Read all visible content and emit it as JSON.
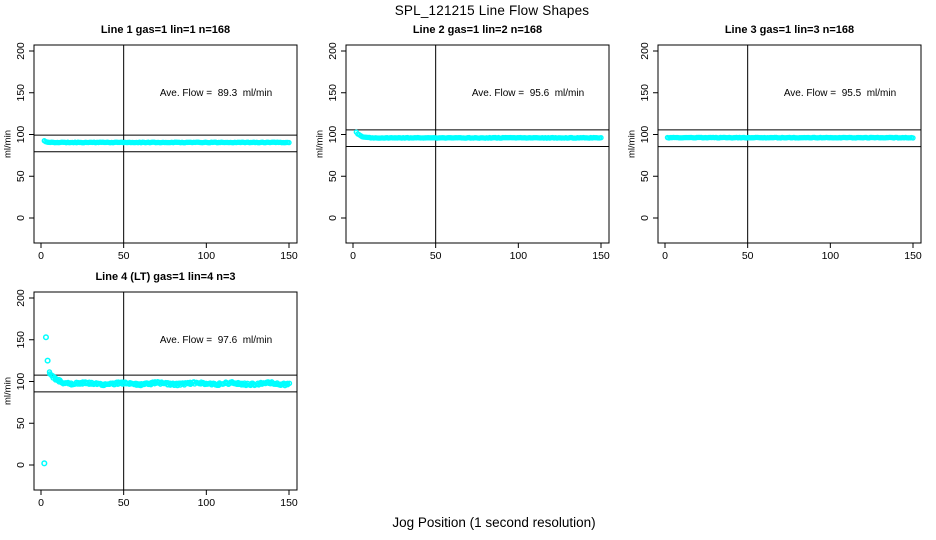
{
  "figure": {
    "title": "SPL_121215  Line Flow Shapes",
    "xlabel": "Jog Position (1 second resolution)"
  },
  "colors": {
    "points": "#00FFFF",
    "axis": "#000000",
    "background": "#FFFFFF",
    "text": "#000000"
  },
  "axes": {
    "ylabel": "ml/min",
    "x_ticks": [
      0,
      50,
      100,
      150
    ],
    "y_ticks": [
      0,
      50,
      100,
      150,
      200
    ],
    "xlim": [
      -4,
      155
    ],
    "ylim": [
      -30,
      207
    ]
  },
  "chart_data": [
    {
      "type": "scatter",
      "title": "Line 1 gas=1 lin=1 n=168",
      "annotation": "Ave. Flow =  89.3  ml/min",
      "ave_flow_ml_min": 89.3,
      "n": 168,
      "vline_x": 50,
      "hlines": [
        99.3,
        79.3
      ],
      "x_range": [
        2,
        150
      ],
      "flat_level": 90.5,
      "start_value": 92.5,
      "decay": 1.0,
      "noise": 0.35,
      "wiggle": 0,
      "points_drawn": 168,
      "x_jitter": 0,
      "outliers": [],
      "seed": 11
    },
    {
      "type": "scatter",
      "title": "Line 2 gas=1 lin=2 n=168",
      "annotation": "Ave. Flow =  95.6  ml/min",
      "ave_flow_ml_min": 95.6,
      "n": 168,
      "vline_x": 50,
      "hlines": [
        105.6,
        85.6
      ],
      "x_range": [
        2,
        150
      ],
      "flat_level": 96.0,
      "start_value": 103.0,
      "decay": 2.5,
      "noise": 0.35,
      "wiggle": 0,
      "points_drawn": 168,
      "x_jitter": 0,
      "outliers": [],
      "seed": 22
    },
    {
      "type": "scatter",
      "title": "Line 3 gas=1 lin=3 n=168",
      "annotation": "Ave. Flow =  95.5  ml/min",
      "ave_flow_ml_min": 95.5,
      "n": 168,
      "vline_x": 50,
      "hlines": [
        105.5,
        85.5
      ],
      "x_range": [
        1.5,
        150
      ],
      "flat_level": 96.2,
      "start_value": 96.2,
      "decay": 1.0,
      "noise": 0.3,
      "wiggle": 0,
      "points_drawn": 168,
      "x_jitter": 0,
      "outliers": [],
      "seed": 33
    },
    {
      "type": "scatter",
      "title": "Line 4 (LT) gas=1 lin=4 n=3",
      "annotation": "Ave. Flow =  97.6  ml/min",
      "ave_flow_ml_min": 97.6,
      "n": 3,
      "vline_x": 50,
      "hlines": [
        107.6,
        87.6
      ],
      "x_range": [
        5,
        150
      ],
      "flat_level": 97.4,
      "start_value": 110.0,
      "decay": 4.5,
      "noise": 1.5,
      "wiggle": 0.9,
      "points_drawn": 290,
      "x_jitter": 0.9,
      "outliers": [
        [
          2,
          2
        ],
        [
          3,
          153
        ],
        [
          4,
          125
        ]
      ],
      "seed": 44
    }
  ]
}
